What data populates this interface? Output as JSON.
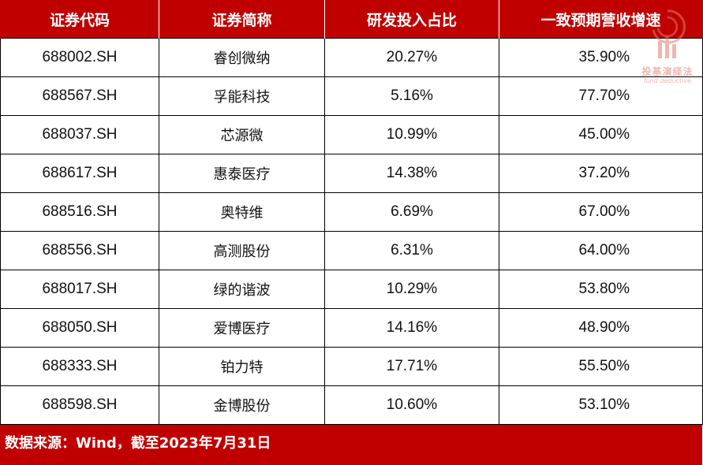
{
  "table": {
    "headers": [
      "证券代码",
      "证券简称",
      "研发投入占比",
      "一致预期营收增速"
    ],
    "rows": [
      {
        "code": "688002.SH",
        "name": "睿创微纳",
        "rd_ratio": "20.27%",
        "growth": "35.90%"
      },
      {
        "code": "688567.SH",
        "name": "孚能科技",
        "rd_ratio": "5.16%",
        "growth": "77.70%"
      },
      {
        "code": "688037.SH",
        "name": "芯源微",
        "rd_ratio": "10.99%",
        "growth": "45.00%"
      },
      {
        "code": "688617.SH",
        "name": "惠泰医疗",
        "rd_ratio": "14.38%",
        "growth": "37.20%"
      },
      {
        "code": "688516.SH",
        "name": "奥特维",
        "rd_ratio": "6.69%",
        "growth": "67.00%"
      },
      {
        "code": "688556.SH",
        "name": "高测股份",
        "rd_ratio": "6.31%",
        "growth": "64.00%"
      },
      {
        "code": "688017.SH",
        "name": "绿的谐波",
        "rd_ratio": "10.29%",
        "growth": "53.80%"
      },
      {
        "code": "688050.SH",
        "name": "爱博医疗",
        "rd_ratio": "14.16%",
        "growth": "48.90%"
      },
      {
        "code": "688333.SH",
        "name": "铂力特",
        "rd_ratio": "17.71%",
        "growth": "55.50%"
      },
      {
        "code": "688598.SH",
        "name": "金博股份",
        "rd_ratio": "10.60%",
        "growth": "53.10%"
      }
    ]
  },
  "footer": {
    "source": "数据来源：Wind，截至2023年7月31日"
  },
  "watermark": {
    "brand": "投基演绎法",
    "sub": "fund deductive",
    "icon": "brand-logo-icon"
  },
  "colors": {
    "header_bg": "#c00000",
    "footer_bg": "#c00000",
    "watermark": "#e27b6e"
  }
}
